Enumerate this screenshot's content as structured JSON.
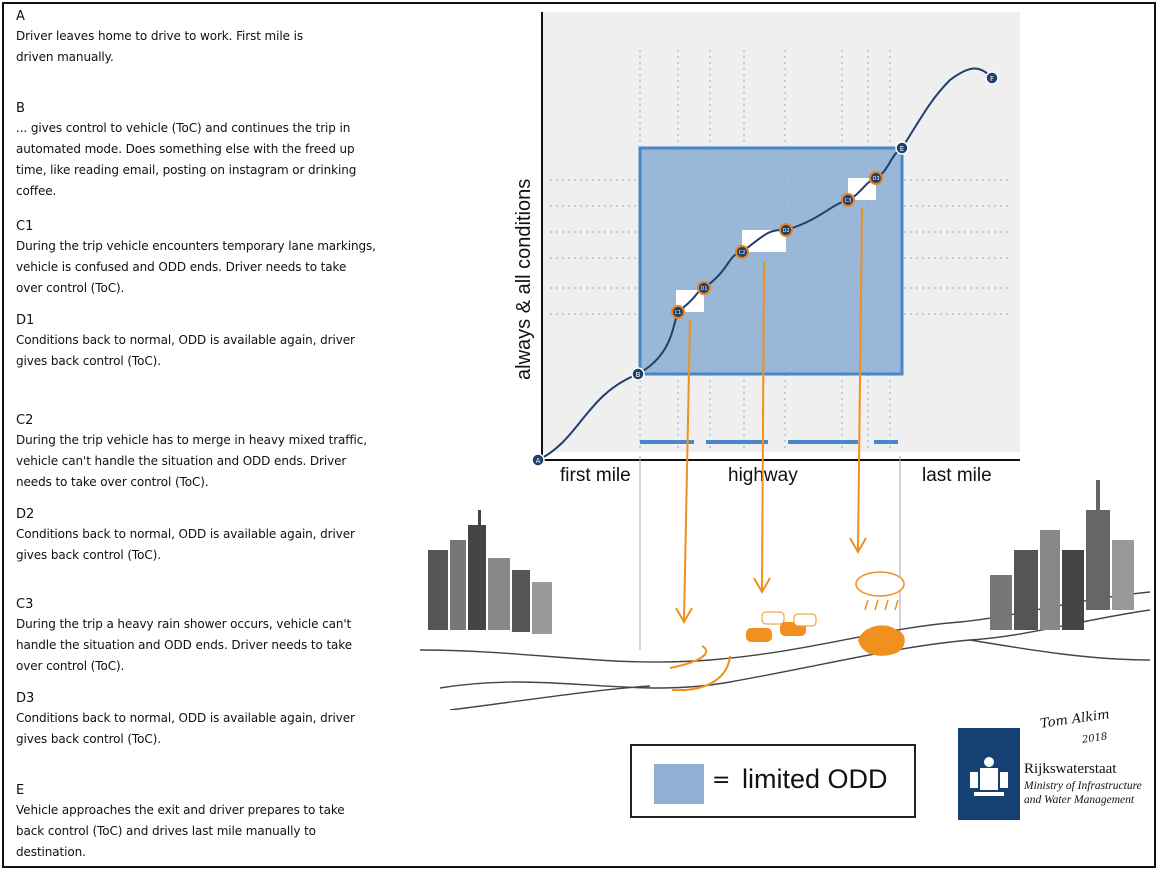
{
  "steps": [
    {
      "letter": "A",
      "lines": [
        "Driver leaves home to drive to work. First mile is",
        "driven manually."
      ]
    },
    {
      "letter": "B",
      "lines": [
        "... gives control to vehicle (ToC) and continues the trip in",
        "automated mode. Does something else with the freed up",
        "time, like reading email, posting on instagram or drinking coffee."
      ]
    },
    {
      "letter": "C1",
      "lines": [
        "During the trip vehicle encounters temporary lane markings,",
        "vehicle is confused and ODD ends. Driver needs to take",
        "over control (ToC)."
      ]
    },
    {
      "letter": "D1",
      "lines": [
        "Conditions back to normal, ODD is available again, driver",
        "gives back control (ToC)."
      ]
    },
    {
      "letter": "C2",
      "lines": [
        "During the trip vehicle has to merge in heavy mixed traffic,",
        "vehicle can't handle the situation and ODD ends. Driver",
        "needs to take over control (ToC)."
      ]
    },
    {
      "letter": "D2",
      "lines": [
        "Conditions back to normal, ODD is available again, driver",
        "gives back control (ToC)."
      ]
    },
    {
      "letter": "C3",
      "lines": [
        "During the trip a heavy rain shower occurs, vehicle can't",
        "handle the situation and ODD ends. Driver needs to take",
        "over control (ToC)."
      ]
    },
    {
      "letter": "D3",
      "lines": [
        "Conditions back to normal, ODD is available again, driver",
        "gives back control (ToC)."
      ]
    },
    {
      "letter": "E",
      "lines": [
        "Vehicle approaches the exit and driver prepares to take",
        "back control (ToC) and drives last mile manually to",
        "destination."
      ]
    }
  ],
  "diagram": {
    "y_axis_label": "always & all conditions",
    "segments": [
      "first mile",
      "highway",
      "last mile"
    ],
    "points": [
      "A",
      "B",
      "C1",
      "D1",
      "C2",
      "D2",
      "C3",
      "D3",
      "E",
      "F"
    ],
    "colors": {
      "odd_fill": "#8fb0d3",
      "odd_border": "#4a86c8",
      "curve": "#1f3f6e",
      "arrows": "#f0901e",
      "point_fill": "#1f3f6e",
      "point_ring": "#e8821c"
    }
  },
  "legend": {
    "equals": "=",
    "label": "limited ODD"
  },
  "organization": {
    "name": "Rijkswaterstaat",
    "subtitle_line1": "Ministry of Infrastructure",
    "subtitle_line2": "and Water Management",
    "color": "#154273"
  },
  "signature": {
    "name": "Tom Alkim",
    "year": "2018"
  }
}
